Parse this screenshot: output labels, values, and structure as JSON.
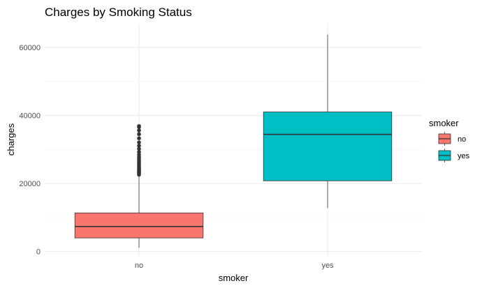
{
  "chart_data": {
    "type": "boxplot",
    "title": "Charges by Smoking Status",
    "xlabel": "smoker",
    "ylabel": "charges",
    "ylim": [
      -1500,
      67000
    ],
    "y_ticks": [
      0,
      20000,
      40000,
      60000
    ],
    "y_tick_labels": [
      "0",
      "20000",
      "40000",
      "60000"
    ],
    "categories": [
      "no",
      "yes"
    ],
    "grid": true,
    "legend": {
      "title": "smoker",
      "placement": "right",
      "entries": [
        {
          "label": "no",
          "color": "#F8766D"
        },
        {
          "label": "yes",
          "color": "#00BFC4"
        }
      ]
    },
    "boxes": [
      {
        "category": "no",
        "color": "#F8766D",
        "whisker_low": 1100,
        "q1": 4000,
        "median": 7350,
        "q3": 11350,
        "whisker_high": 22400,
        "outliers": [
          22600,
          22900,
          23200,
          23500,
          23800,
          24100,
          24500,
          25000,
          25500,
          26000,
          26600,
          27200,
          27800,
          28500,
          29300,
          30200,
          31100,
          32100,
          33300,
          34500,
          35600,
          36600,
          36900
        ]
      },
      {
        "category": "yes",
        "color": "#00BFC4",
        "whisker_low": 12800,
        "q1": 20800,
        "median": 34450,
        "q3": 41050,
        "whisker_high": 63800,
        "outliers": []
      }
    ]
  }
}
